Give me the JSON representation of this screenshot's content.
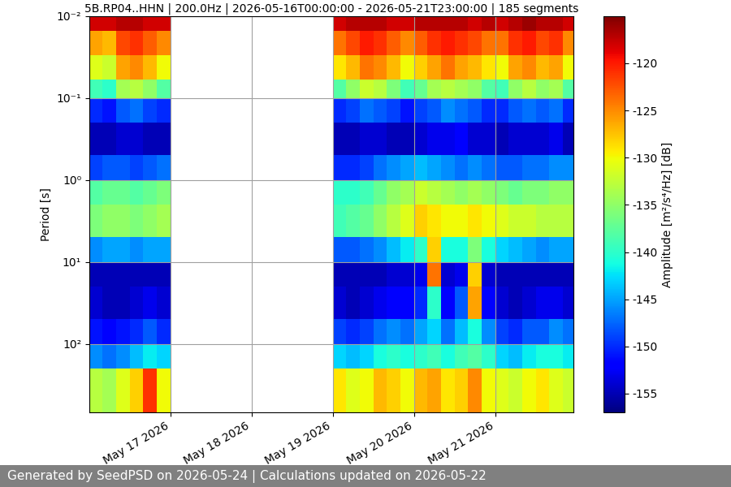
{
  "chart_data": {
    "type": "heatmap",
    "title": "5B.RP04..HHN | 200.0Hz | 2026-05-16T00:00:00 - 2026-05-21T23:00:00 | 185 segments",
    "y_label": "Period [s]",
    "footer": "Generated by SeedPSD on 2026-05-24 | Calculations updated on 2026-05-22",
    "color": "jet",
    "log": "y",
    "grid": true,
    "x": [
      "2026-05-16T00:00",
      "2026-05-16T04:00",
      "2026-05-16T08:00",
      "2026-05-16T12:00",
      "2026-05-16T16:00",
      "2026-05-16T20:00",
      "2026-05-17T00:00",
      "2026-05-17T04:00",
      "2026-05-17T08:00",
      "2026-05-17T12:00",
      "2026-05-17T16:00",
      "2026-05-17T20:00",
      "2026-05-18T00:00",
      "2026-05-18T04:00",
      "2026-05-18T08:00",
      "2026-05-18T12:00",
      "2026-05-18T16:00",
      "2026-05-18T20:00",
      "2026-05-19T00:00",
      "2026-05-19T04:00",
      "2026-05-19T08:00",
      "2026-05-19T12:00",
      "2026-05-19T16:00",
      "2026-05-19T20:00",
      "2026-05-20T00:00",
      "2026-05-20T04:00",
      "2026-05-20T08:00",
      "2026-05-20T12:00",
      "2026-05-20T16:00",
      "2026-05-20T20:00",
      "2026-05-21T00:00",
      "2026-05-21T04:00",
      "2026-05-21T08:00",
      "2026-05-21T12:00",
      "2026-05-21T16:00",
      "2026-05-21T20:00",
      "2026-05-22T00:00"
    ],
    "y": [
      0.01,
      0.015,
      0.03,
      0.06,
      0.1,
      0.2,
      0.5,
      1,
      2,
      5,
      10,
      20,
      50,
      100,
      200,
      690
    ],
    "values": [
      [
        -118,
        -118,
        -117,
        -117,
        -118,
        -118,
        null,
        null,
        null,
        null,
        null,
        null,
        null,
        null,
        null,
        null,
        null,
        null,
        -118,
        -117,
        -117,
        -117,
        -118,
        -118,
        -117,
        -117,
        -117,
        -117,
        -118,
        -117,
        -118,
        -117,
        -116,
        -117,
        -117,
        -118
      ],
      [
        -126,
        -127,
        -122,
        -121,
        -123,
        -125,
        null,
        null,
        null,
        null,
        null,
        null,
        null,
        null,
        null,
        null,
        null,
        null,
        -124,
        -122,
        -120,
        -121,
        -123,
        -125,
        -123,
        -121,
        -120,
        -121,
        -122,
        -124,
        -124,
        -121,
        -120,
        -122,
        -121,
        -125
      ],
      [
        -131,
        -132,
        -126,
        -125,
        -127,
        -130,
        null,
        null,
        null,
        null,
        null,
        null,
        null,
        null,
        null,
        null,
        null,
        null,
        -129,
        -127,
        -124,
        -125,
        -127,
        -130,
        -128,
        -126,
        -124,
        -126,
        -127,
        -129,
        -130,
        -126,
        -125,
        -127,
        -126,
        -130
      ],
      [
        -139,
        -140,
        -134,
        -133,
        -135,
        -138,
        null,
        null,
        null,
        null,
        null,
        null,
        null,
        null,
        null,
        null,
        null,
        null,
        -138,
        -135,
        -132,
        -133,
        -136,
        -139,
        -137,
        -134,
        -133,
        -134,
        -135,
        -138,
        -139,
        -135,
        -133,
        -135,
        -134,
        -138
      ],
      [
        -150,
        -151,
        -148,
        -147,
        -149,
        -150,
        null,
        null,
        null,
        null,
        null,
        null,
        null,
        null,
        null,
        null,
        null,
        null,
        -150,
        -149,
        -147,
        -148,
        -149,
        -151,
        -149,
        -148,
        -146,
        -147,
        -148,
        -150,
        -150,
        -148,
        -147,
        -148,
        -147,
        -150
      ],
      [
        -155,
        -155,
        -154,
        -154,
        -155,
        -155,
        null,
        null,
        null,
        null,
        null,
        null,
        null,
        null,
        null,
        null,
        null,
        null,
        -155,
        -155,
        -154,
        -154,
        -155,
        -155,
        -154,
        -153,
        -153,
        -152,
        -154,
        -154,
        -155,
        -154,
        -154,
        -154,
        -153,
        -155
      ],
      [
        -149,
        -148,
        -148,
        -149,
        -148,
        -147,
        null,
        null,
        null,
        null,
        null,
        null,
        null,
        null,
        null,
        null,
        null,
        null,
        -150,
        -150,
        -149,
        -147,
        -146,
        -145,
        -144,
        -145,
        -146,
        -147,
        -146,
        -147,
        -148,
        -148,
        -147,
        -147,
        -146,
        -146
      ],
      [
        -138,
        -137,
        -137,
        -138,
        -137,
        -136,
        null,
        null,
        null,
        null,
        null,
        null,
        null,
        null,
        null,
        null,
        null,
        null,
        -140,
        -140,
        -139,
        -137,
        -135,
        -134,
        -132,
        -133,
        -134,
        -135,
        -134,
        -135,
        -136,
        -137,
        -136,
        -136,
        -135,
        -135
      ],
      [
        -136,
        -135,
        -135,
        -136,
        -135,
        -134,
        null,
        null,
        null,
        null,
        null,
        null,
        null,
        null,
        null,
        null,
        null,
        null,
        -139,
        -138,
        -137,
        -135,
        -133,
        -131,
        -128,
        -129,
        -130,
        -130,
        -129,
        -130,
        -131,
        -132,
        -132,
        -133,
        -133,
        -133
      ],
      [
        -146,
        -145,
        -145,
        -146,
        -145,
        -145,
        null,
        null,
        null,
        null,
        null,
        null,
        null,
        null,
        null,
        null,
        null,
        null,
        -148,
        -148,
        -147,
        -146,
        -144,
        -142,
        -140,
        -128,
        -141,
        -141,
        -136,
        -141,
        -143,
        -144,
        -145,
        -146,
        -145,
        -145
      ],
      [
        -155,
        -155,
        -155,
        -155,
        -155,
        -155,
        null,
        null,
        null,
        null,
        null,
        null,
        null,
        null,
        null,
        null,
        null,
        null,
        -155,
        -155,
        -155,
        -155,
        -154,
        -154,
        -153,
        -124,
        -154,
        -153,
        -128,
        -154,
        -155,
        -155,
        -155,
        -155,
        -155,
        -155
      ],
      [
        -154,
        -155,
        -155,
        -154,
        -153,
        -154,
        null,
        null,
        null,
        null,
        null,
        null,
        null,
        null,
        null,
        null,
        null,
        null,
        -154,
        -155,
        -154,
        -153,
        -152,
        -152,
        -150,
        -140,
        -152,
        -148,
        -126,
        -152,
        -154,
        -155,
        -154,
        -153,
        -153,
        -154
      ],
      [
        -151,
        -152,
        -151,
        -150,
        -148,
        -150,
        null,
        null,
        null,
        null,
        null,
        null,
        null,
        null,
        null,
        null,
        null,
        null,
        -149,
        -150,
        -149,
        -147,
        -146,
        -147,
        -145,
        -143,
        -147,
        -144,
        -141,
        -146,
        -149,
        -150,
        -148,
        -148,
        -146,
        -147
      ],
      [
        -146,
        -147,
        -146,
        -144,
        -142,
        -143,
        null,
        null,
        null,
        null,
        null,
        null,
        null,
        null,
        null,
        null,
        null,
        null,
        -143,
        -144,
        -143,
        -141,
        -140,
        -141,
        -140,
        -139,
        -141,
        -139,
        -138,
        -140,
        -143,
        -144,
        -142,
        -141,
        -141,
        -142
      ],
      [
        -133,
        -134,
        -131,
        -128,
        -121,
        -130,
        null,
        null,
        null,
        null,
        null,
        null,
        null,
        null,
        null,
        null,
        null,
        null,
        -129,
        -131,
        -130,
        -127,
        -128,
        -130,
        -127,
        -126,
        -129,
        -128,
        -125,
        -130,
        -131,
        -132,
        -130,
        -129,
        -131,
        -132
      ]
    ],
    "xlim": [
      "2026-05-16T00:00",
      "2026-05-21T23:00"
    ],
    "xticks": [
      {
        "value": "2026-05-17T00:00",
        "label": "May 17 2026"
      },
      {
        "value": "2026-05-18T00:00",
        "label": "May 18 2026"
      },
      {
        "value": "2026-05-19T00:00",
        "label": "May 19 2026"
      },
      {
        "value": "2026-05-20T00:00",
        "label": "May 20 2026"
      },
      {
        "value": "2026-05-21T00:00",
        "label": "May 21 2026"
      }
    ],
    "ylim": [
      690,
      0.01
    ],
    "yticks": [
      {
        "value": 0.01,
        "label": "10⁻²"
      },
      {
        "value": 0.1,
        "label": "10⁻¹"
      },
      {
        "value": 1,
        "label": "10⁰"
      },
      {
        "value": 10,
        "label": "10¹"
      },
      {
        "value": 100,
        "label": "10²"
      }
    ],
    "colorbar": {
      "label": "Amplitude [m²/s⁴/Hz] [dB]",
      "range": [
        -157,
        -115
      ],
      "ticks": [
        -155,
        -150,
        -145,
        -140,
        -135,
        -130,
        -125,
        -120
      ]
    }
  }
}
